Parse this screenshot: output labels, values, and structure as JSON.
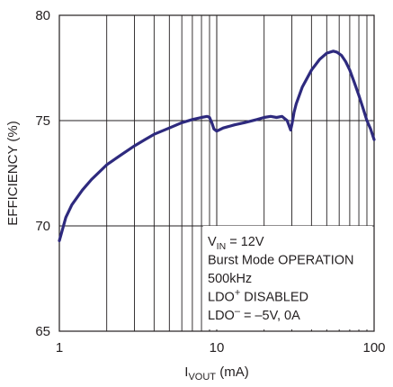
{
  "chart_data": {
    "type": "line",
    "title": "",
    "xlabel": {
      "main": "I",
      "sub": "VOUT",
      "unit": " (mA)"
    },
    "ylabel": "EFFICIENCY (%)",
    "xscale": "log",
    "xlim": [
      1,
      100
    ],
    "ylim": [
      65,
      80
    ],
    "xticks": [
      1,
      10,
      100
    ],
    "xtick_labels": [
      "1",
      "10",
      "100"
    ],
    "yticks": [
      65,
      70,
      75,
      80
    ],
    "ytick_labels": [
      "65",
      "70",
      "75",
      "80"
    ],
    "grid": true,
    "line_color": "#2e2a7e",
    "series": [
      {
        "name": "",
        "x": [
          1.0,
          1.1,
          1.2,
          1.4,
          1.6,
          2.0,
          2.5,
          3.0,
          3.5,
          4.0,
          5.0,
          6.0,
          7.0,
          8.0,
          8.7,
          9.0,
          9.3,
          9.6,
          10.0,
          11.0,
          13.0,
          15.0,
          18.0,
          20.0,
          22.0,
          24.0,
          26.0,
          27.0,
          28.0,
          29.0,
          29.5,
          30.0,
          30.5,
          31.0,
          32.0,
          35.0,
          40.0,
          45.0,
          50.0,
          55.0,
          58.0,
          62.0,
          66.0,
          70.0,
          75.0,
          80.0,
          85.0,
          90.0,
          95.0,
          100.0
        ],
        "values": [
          69.3,
          70.4,
          71.0,
          71.7,
          72.2,
          72.9,
          73.4,
          73.8,
          74.1,
          74.35,
          74.65,
          74.9,
          75.05,
          75.15,
          75.2,
          75.15,
          74.9,
          74.6,
          74.5,
          74.65,
          74.8,
          74.9,
          75.05,
          75.15,
          75.2,
          75.15,
          75.2,
          75.1,
          75.0,
          74.7,
          74.55,
          74.8,
          75.1,
          75.4,
          75.8,
          76.6,
          77.4,
          77.9,
          78.2,
          78.3,
          78.25,
          78.1,
          77.8,
          77.4,
          76.8,
          76.2,
          75.6,
          75.0,
          74.6,
          74.1
        ]
      }
    ],
    "annotation": [
      {
        "main": "V",
        "sub": "IN",
        "tail": " = 12V",
        "sup": ""
      },
      {
        "main": "Burst Mode OPERATION",
        "sub": "",
        "tail": "",
        "sup": ""
      },
      {
        "main": "500kHz",
        "sub": "",
        "tail": "",
        "sup": ""
      },
      {
        "main": "LDO",
        "sub": "",
        "tail": " DISABLED",
        "sup": "+"
      },
      {
        "main": "LDO",
        "sub": "",
        "tail": " = –5V, 0A",
        "sup": "–"
      }
    ]
  }
}
